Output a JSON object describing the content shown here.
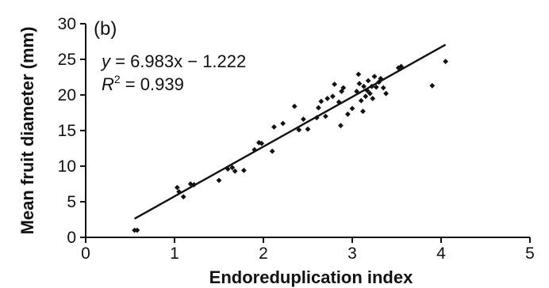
{
  "chart_data": {
    "type": "scatter",
    "panel_label": "(b)",
    "xlabel": "Endoreduplication index",
    "ylabel": "Mean fruit diameter (mm)",
    "xlim": [
      0,
      5
    ],
    "ylim": [
      0,
      30
    ],
    "xticks": [
      0,
      1,
      2,
      3,
      4,
      5
    ],
    "yticks": [
      0,
      5,
      10,
      15,
      20,
      25,
      30
    ],
    "grid": false,
    "colors": {
      "points": "#111111",
      "trendline": "#111111",
      "axes": "#111111"
    },
    "annotation": {
      "equation_var": "y",
      "equation_rest": " = 6.983x − 1.222",
      "r2_var": "R",
      "r2_sup": "2",
      "r2_rest": " = 0.939"
    },
    "trendline": {
      "slope": 6.983,
      "intercept": -1.222,
      "x_range": [
        0.55,
        4.05
      ]
    },
    "points": [
      [
        0.55,
        1.0
      ],
      [
        0.58,
        1.0
      ],
      [
        1.03,
        7.0
      ],
      [
        1.05,
        6.4
      ],
      [
        1.1,
        5.7
      ],
      [
        1.18,
        7.5
      ],
      [
        1.22,
        7.4
      ],
      [
        1.5,
        8.0
      ],
      [
        1.6,
        9.6
      ],
      [
        1.65,
        9.8
      ],
      [
        1.68,
        9.3
      ],
      [
        1.78,
        9.4
      ],
      [
        1.9,
        12.3
      ],
      [
        1.95,
        13.3
      ],
      [
        1.98,
        13.2
      ],
      [
        2.1,
        12.1
      ],
      [
        2.12,
        15.5
      ],
      [
        2.22,
        16.0
      ],
      [
        2.35,
        18.4
      ],
      [
        2.4,
        15.1
      ],
      [
        2.45,
        16.6
      ],
      [
        2.5,
        15.2
      ],
      [
        2.6,
        16.8
      ],
      [
        2.62,
        18.2
      ],
      [
        2.65,
        19.1
      ],
      [
        2.7,
        17.0
      ],
      [
        2.72,
        19.5
      ],
      [
        2.78,
        19.8
      ],
      [
        2.8,
        21.5
      ],
      [
        2.85,
        19.0
      ],
      [
        2.87,
        15.7
      ],
      [
        2.88,
        20.5
      ],
      [
        2.9,
        21.0
      ],
      [
        2.95,
        17.3
      ],
      [
        3.0,
        18.1
      ],
      [
        3.05,
        20.5
      ],
      [
        3.07,
        22.9
      ],
      [
        3.08,
        21.6
      ],
      [
        3.1,
        19.2
      ],
      [
        3.12,
        17.7
      ],
      [
        3.13,
        21.2
      ],
      [
        3.15,
        19.8
      ],
      [
        3.17,
        20.6
      ],
      [
        3.18,
        22.0
      ],
      [
        3.2,
        20.2
      ],
      [
        3.22,
        21.2
      ],
      [
        3.23,
        19.5
      ],
      [
        3.25,
        22.6
      ],
      [
        3.27,
        21.1
      ],
      [
        3.3,
        21.8
      ],
      [
        3.32,
        22.3
      ],
      [
        3.35,
        21.0
      ],
      [
        3.38,
        20.2
      ],
      [
        3.52,
        23.8
      ],
      [
        3.55,
        24.0
      ],
      [
        3.9,
        21.3
      ],
      [
        4.05,
        24.7
      ]
    ]
  }
}
